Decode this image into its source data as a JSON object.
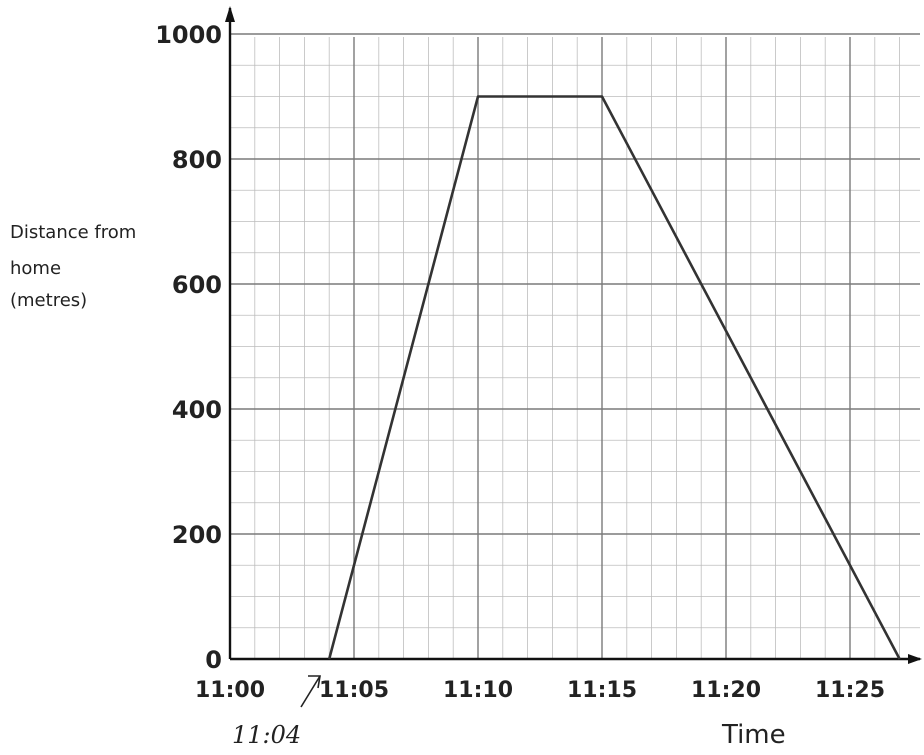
{
  "chart_data": {
    "type": "line",
    "title": "",
    "xlabel": "Time",
    "ylabel": [
      "Distance from",
      "home",
      "(metres)"
    ],
    "x_tick_labels": [
      "11:00",
      "11:05",
      "11:10",
      "11:15",
      "11:20",
      "11:25"
    ],
    "y_tick_labels": [
      "0",
      "200",
      "400",
      "600",
      "800",
      "1000"
    ],
    "xlim": [
      "11:00",
      "11:28"
    ],
    "ylim": [
      0,
      1000
    ],
    "grid": true,
    "series": [
      {
        "x": [
          "11:04",
          "11:10",
          "11:15",
          "11:27"
        ],
        "y": [
          0,
          900,
          900,
          0
        ]
      }
    ],
    "annotations": [
      {
        "text": "11:04",
        "x": "11:04",
        "y": 0
      }
    ]
  }
}
